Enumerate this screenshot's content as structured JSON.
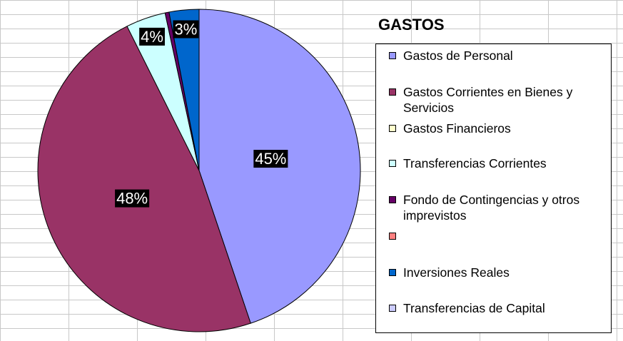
{
  "chart_data": {
    "type": "pie",
    "title": "GASTOS",
    "legend_position": "right",
    "grid": true,
    "slices": [
      {
        "name": "Gastos de Personal",
        "value": 45,
        "label": "45%",
        "color": "#9999ff"
      },
      {
        "name": "Gastos Corrientes en Bienes y Servicios",
        "value": 48,
        "label": "48%",
        "color": "#993366"
      },
      {
        "name": "Gastos Financieros",
        "value": 0,
        "label": "",
        "color": "#ffffcc"
      },
      {
        "name": "Transferencias Corrientes",
        "value": 4,
        "label": "4%",
        "color": "#ccffff"
      },
      {
        "name": "Fondo de Contingencias y otros imprevistos",
        "value": 0.4,
        "label": "",
        "color": "#660066"
      },
      {
        "name": "",
        "value": 0,
        "label": "",
        "color": "#ff8080"
      },
      {
        "name": "Inversiones Reales",
        "value": 3,
        "label": "3%",
        "color": "#0066cc"
      },
      {
        "name": "Transferencias de Capital",
        "value": 0,
        "label": "",
        "color": "#ccccff"
      }
    ]
  }
}
